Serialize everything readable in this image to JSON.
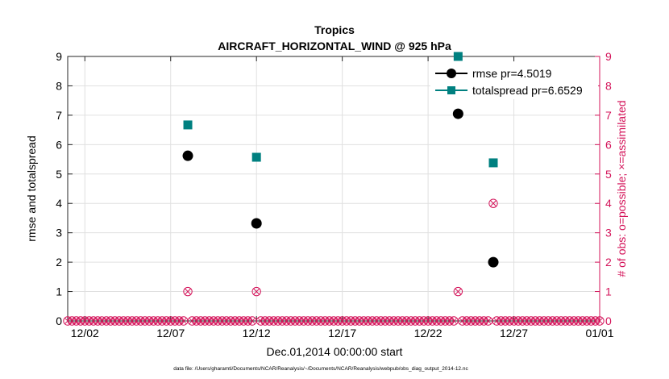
{
  "chart_data": {
    "type": "scatter",
    "title": "Tropics",
    "subtitle": "AIRCRAFT_HORIZONTAL_WIND @ 925 hPa",
    "xlabel": "Dec.01,2014 00:00:00 start",
    "ylabel": "rmse and totalspread",
    "ylabel_right": "# of obs: o=possible; ×=assimilated",
    "xlim": [
      0,
      31
    ],
    "ylim": [
      0,
      9
    ],
    "ylim_right": [
      0,
      9
    ],
    "x_ticks": [
      {
        "value": 1,
        "label": "12/02"
      },
      {
        "value": 6,
        "label": "12/07"
      },
      {
        "value": 11,
        "label": "12/12"
      },
      {
        "value": 16,
        "label": "12/17"
      },
      {
        "value": 21,
        "label": "12/22"
      },
      {
        "value": 26,
        "label": "12/27"
      },
      {
        "value": 31,
        "label": "01/01"
      }
    ],
    "y_ticks": [
      0,
      1,
      2,
      3,
      4,
      5,
      6,
      7,
      8,
      9
    ],
    "grid": true,
    "legend_position": "top-right",
    "series": [
      {
        "name": "rmse pr=4.5019",
        "marker": "circle",
        "color": "#000000",
        "x": [
          7.0,
          11.0,
          22.75,
          24.8
        ],
        "values": [
          5.62,
          3.32,
          7.05,
          2.0
        ]
      },
      {
        "name": "totalspread pr=6.6529",
        "marker": "square",
        "color": "#008080",
        "x": [
          7.0,
          11.0,
          22.75,
          24.8
        ],
        "values": [
          6.67,
          5.57,
          9.0,
          5.38
        ]
      }
    ],
    "obs_counts": {
      "color": "#d4145a",
      "x_start": 0,
      "x_step": 0.25,
      "x_end": 31,
      "nonzero": [
        {
          "x": 7.0,
          "possible": 1,
          "assimilated": 1
        },
        {
          "x": 11.0,
          "possible": 1,
          "assimilated": 1
        },
        {
          "x": 22.75,
          "possible": 1,
          "assimilated": 1
        },
        {
          "x": 24.8,
          "possible": 4,
          "assimilated": 4
        }
      ]
    },
    "footer_note": "data file: /Users/gharamti/Documents/NCAR/Reanalysis/~/Documents/NCAR/Reanalysis/webpub/obs_diag_output_2014-12.nc"
  },
  "colors": {
    "rmse": "#000000",
    "totalspread": "#008080",
    "obs": "#d4145a",
    "grid": "#e0e0e0"
  }
}
